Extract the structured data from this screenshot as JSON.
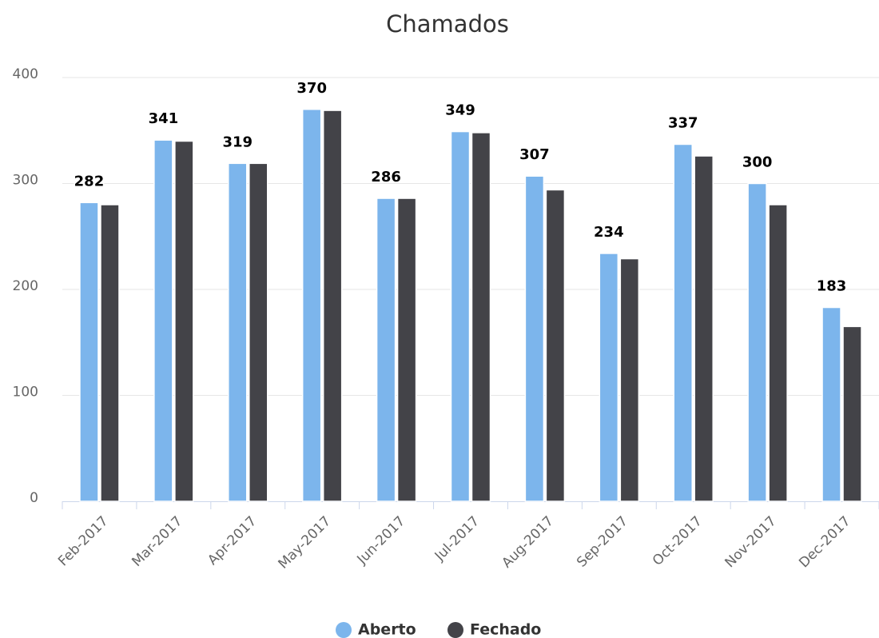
{
  "chart_data": {
    "type": "bar",
    "title": "Chamados",
    "categories": [
      "Feb-2017",
      "Mar-2017",
      "Apr-2017",
      "May-2017",
      "Jun-2017",
      "Jul-2017",
      "Aug-2017",
      "Sep-2017",
      "Oct-2017",
      "Nov-2017",
      "Dec-2017"
    ],
    "series": [
      {
        "name": "Aberto",
        "color": "#7cb5ec",
        "data_labels": true,
        "values": [
          282,
          341,
          319,
          370,
          286,
          349,
          307,
          234,
          337,
          300,
          183
        ]
      },
      {
        "name": "Fechado",
        "color": "#434348",
        "values": [
          280,
          340,
          319,
          369,
          286,
          348,
          294,
          229,
          326,
          280,
          165
        ]
      }
    ],
    "ylim": [
      0,
      400
    ],
    "yticks": [
      0,
      100,
      200,
      300,
      400
    ],
    "grid": true,
    "legend": "bottom"
  }
}
